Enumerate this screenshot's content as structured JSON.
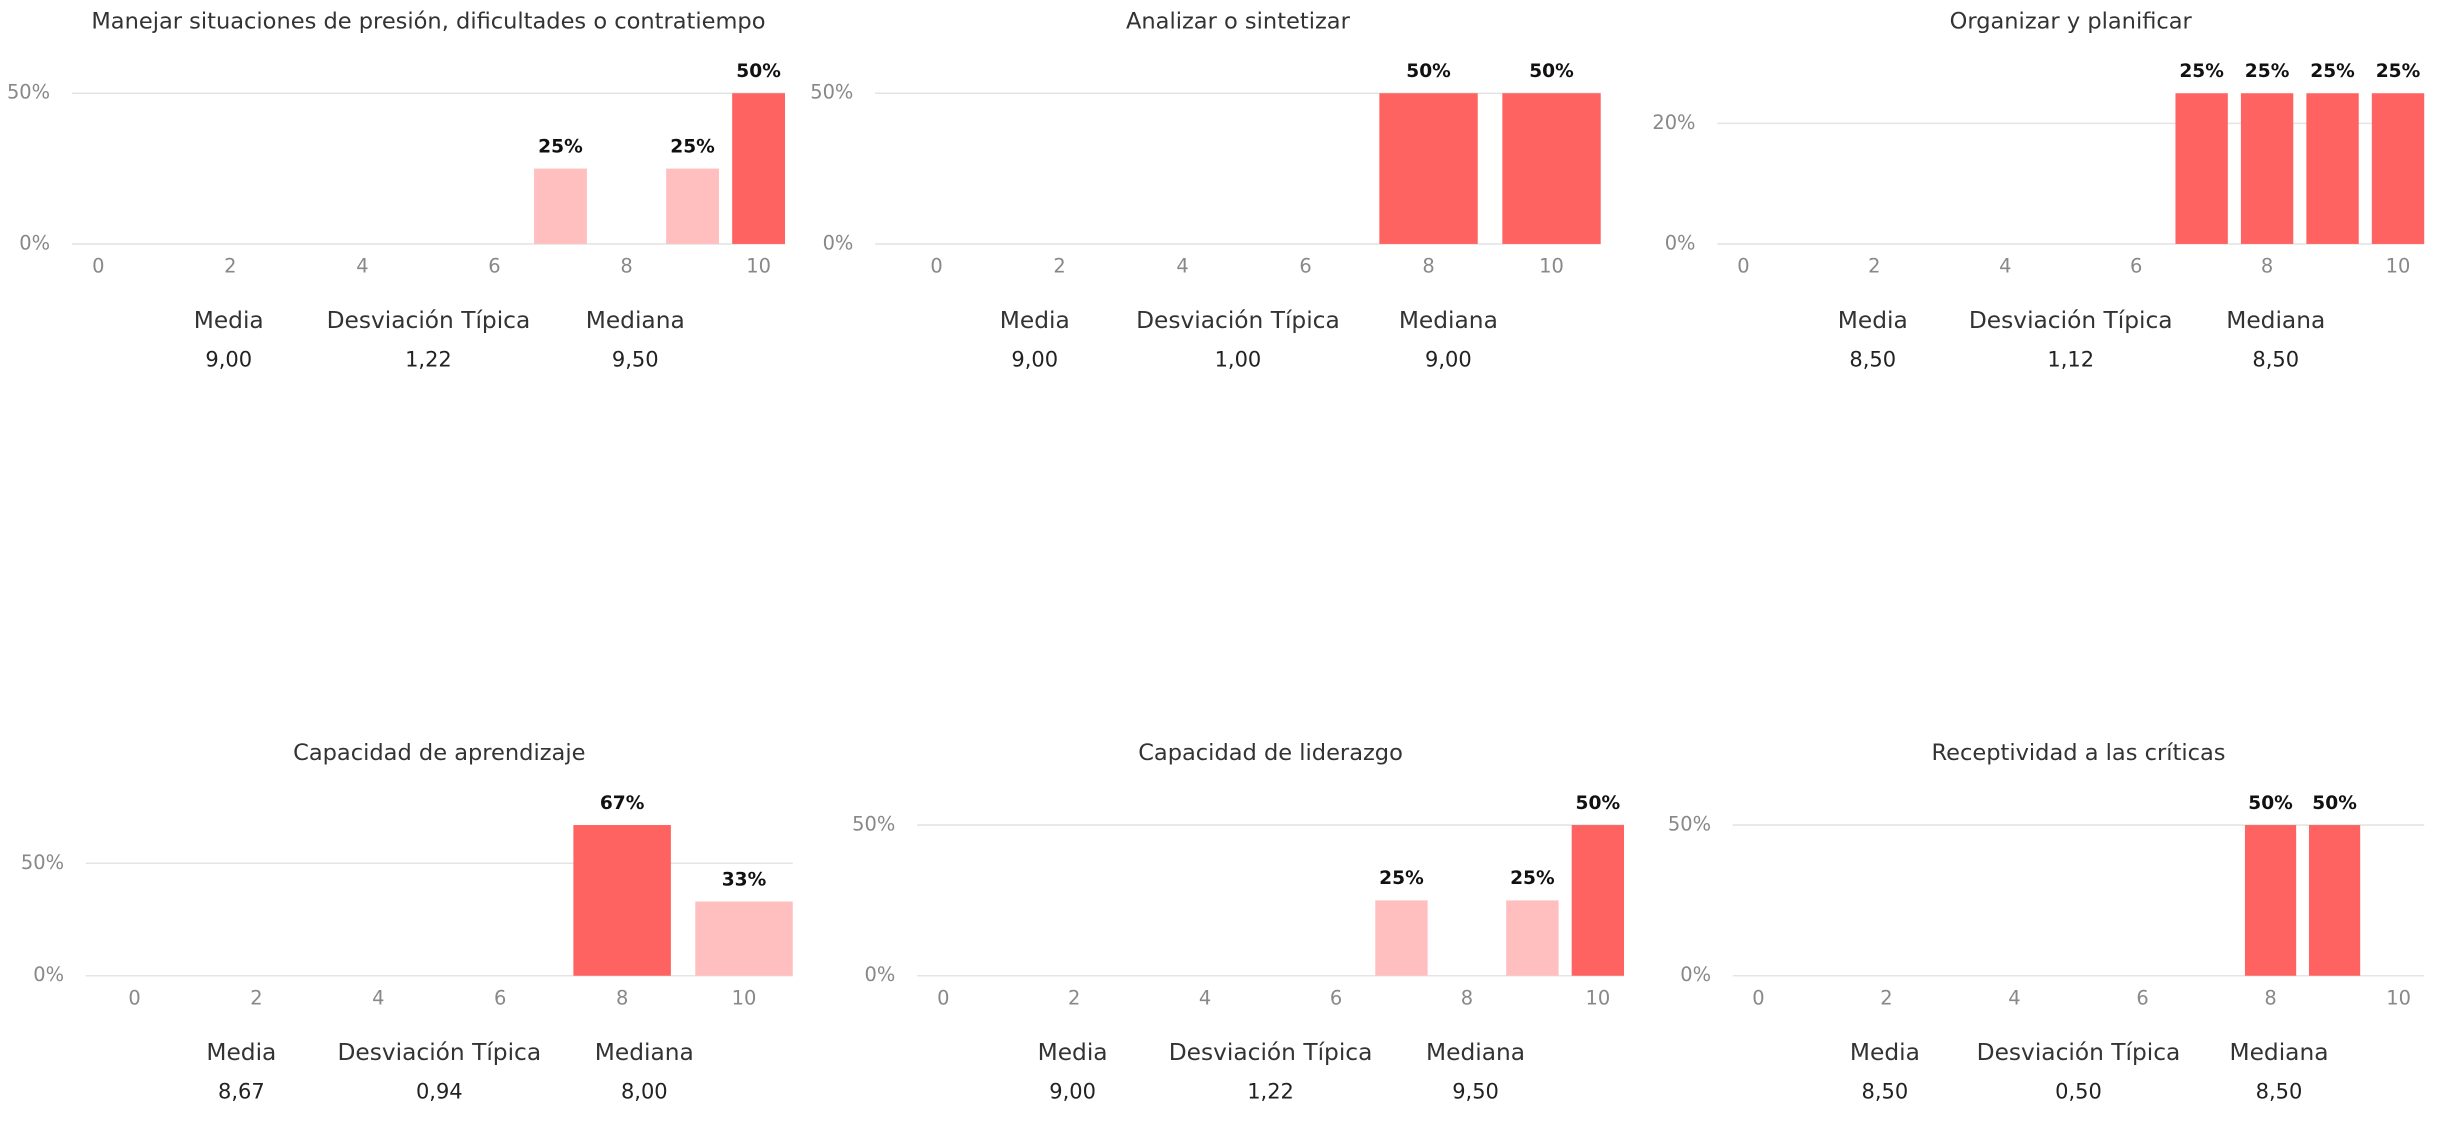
{
  "chart_data": [
    {
      "type": "bar",
      "title": "Manejar situaciones de presión, dificultades o contratiempo",
      "x": [
        7,
        9,
        10
      ],
      "values": [
        25,
        25,
        50
      ],
      "value_labels": [
        "25%",
        "25%",
        "50%"
      ],
      "colors": [
        "#ffbfbf",
        "#ffbfbf",
        "#ff6361"
      ],
      "xlim": [
        -0.4,
        10.4
      ],
      "xticks": [
        0,
        2,
        4,
        6,
        8,
        10
      ],
      "ylim": [
        0,
        50
      ],
      "yticks": [
        {
          "value": 0,
          "label": "0%"
        },
        {
          "value": 50,
          "label": "50%"
        }
      ],
      "grid": true,
      "stats": [
        {
          "label": "Media",
          "value": "9,00"
        },
        {
          "label": "Desviación Típica",
          "value": "1,22"
        },
        {
          "label": "Mediana",
          "value": "9,50"
        }
      ]
    },
    {
      "type": "bar",
      "title": "Analizar o sintetizar",
      "x": [
        8,
        10
      ],
      "values": [
        50,
        50
      ],
      "value_labels": [
        "50%",
        "50%"
      ],
      "colors": [
        "#ff6361",
        "#ff6361"
      ],
      "xlim": [
        -1,
        10.8
      ],
      "xticks": [
        0,
        2,
        4,
        6,
        8,
        10
      ],
      "ylim": [
        0,
        50
      ],
      "yticks": [
        {
          "value": 0,
          "label": "0%"
        },
        {
          "value": 50,
          "label": "50%"
        }
      ],
      "grid": true,
      "stats": [
        {
          "label": "Media",
          "value": "9,00"
        },
        {
          "label": "Desviación Típica",
          "value": "1,00"
        },
        {
          "label": "Mediana",
          "value": "9,00"
        }
      ]
    },
    {
      "type": "bar",
      "title": "Organizar y planificar",
      "x": [
        7,
        8,
        9,
        10
      ],
      "values": [
        25,
        25,
        25,
        25
      ],
      "value_labels": [
        "25%",
        "25%",
        "25%",
        "25%"
      ],
      "colors": [
        "#ff6361",
        "#ff6361",
        "#ff6361",
        "#ff6361"
      ],
      "xlim": [
        -0.4,
        10.4
      ],
      "xticks": [
        0,
        2,
        4,
        6,
        8,
        10
      ],
      "ylim": [
        0,
        25
      ],
      "yticks": [
        {
          "value": 0,
          "label": "0%"
        },
        {
          "value": 20,
          "label": "20%"
        }
      ],
      "grid": true,
      "stats": [
        {
          "label": "Media",
          "value": "8,50"
        },
        {
          "label": "Desviación Típica",
          "value": "1,12"
        },
        {
          "label": "Mediana",
          "value": "8,50"
        }
      ]
    },
    {
      "type": "bar",
      "title": "Capacidad de aprendizaje",
      "x": [
        8,
        10
      ],
      "values": [
        67,
        33
      ],
      "value_labels": [
        "67%",
        "33%"
      ],
      "colors": [
        "#ff6361",
        "#ffbfbf"
      ],
      "xlim": [
        -0.8,
        10.8
      ],
      "xticks": [
        0,
        2,
        4,
        6,
        8,
        10
      ],
      "ylim": [
        0,
        67
      ],
      "yticks": [
        {
          "value": 0,
          "label": "0%"
        },
        {
          "value": 50,
          "label": "50%"
        }
      ],
      "grid": true,
      "stats": [
        {
          "label": "Media",
          "value": "8,67"
        },
        {
          "label": "Desviación Típica",
          "value": "0,94"
        },
        {
          "label": "Mediana",
          "value": "8,00"
        }
      ]
    },
    {
      "type": "bar",
      "title": "Capacidad de liderazgo",
      "x": [
        7,
        9,
        10
      ],
      "values": [
        25,
        25,
        50
      ],
      "value_labels": [
        "25%",
        "25%",
        "50%"
      ],
      "colors": [
        "#ffbfbf",
        "#ffbfbf",
        "#ff6361"
      ],
      "xlim": [
        -0.4,
        10.4
      ],
      "xticks": [
        0,
        2,
        4,
        6,
        8,
        10
      ],
      "ylim": [
        0,
        50
      ],
      "yticks": [
        {
          "value": 0,
          "label": "0%"
        },
        {
          "value": 50,
          "label": "50%"
        }
      ],
      "grid": true,
      "stats": [
        {
          "label": "Media",
          "value": "9,00"
        },
        {
          "label": "Desviación Típica",
          "value": "1,22"
        },
        {
          "label": "Mediana",
          "value": "9,50"
        }
      ]
    },
    {
      "type": "bar",
      "title": "Receptividad a las críticas",
      "x": [
        8,
        9
      ],
      "values": [
        50,
        50
      ],
      "value_labels": [
        "50%",
        "50%"
      ],
      "colors": [
        "#ff6361",
        "#ff6361"
      ],
      "xlim": [
        -0.4,
        10.4
      ],
      "xticks": [
        0,
        2,
        4,
        6,
        8,
        10
      ],
      "ylim": [
        0,
        50
      ],
      "yticks": [
        {
          "value": 0,
          "label": "0%"
        },
        {
          "value": 50,
          "label": "50%"
        }
      ],
      "grid": true,
      "stats": [
        {
          "label": "Media",
          "value": "8,50"
        },
        {
          "label": "Desviación Típica",
          "value": "0,50"
        },
        {
          "label": "Mediana",
          "value": "8,50"
        }
      ]
    }
  ]
}
